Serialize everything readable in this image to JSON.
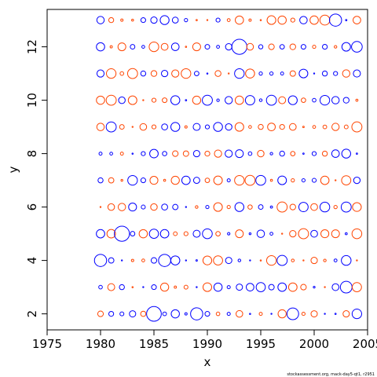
{
  "chart_data": {
    "type": "scatter",
    "title": "",
    "xlabel": "x",
    "ylabel": "y",
    "xlim": [
      1975,
      2005
    ],
    "ylim": [
      1.4,
      13.4
    ],
    "xticks": [
      1975,
      1980,
      1985,
      1990,
      1995,
      2000,
      2005
    ],
    "yticks": [
      2,
      4,
      6,
      8,
      10,
      12
    ],
    "grid": false,
    "legend": "none",
    "credit": "stockassessment.org, mack-day5-qt1, r2951",
    "colors": {
      "positive": "#ff4500",
      "negative": "#0000ff"
    },
    "bubble_note": "point size proportional to |value|; blue circles negative, red positive",
    "series": [
      {
        "name": "",
        "x_from": 1980,
        "x_to": 2004,
        "y_from": 2,
        "y_to": 13,
        "grid_points": "all combinations of integer x in [1980,2004] and integer y in [2,13], years x - y >= 1967 approximately",
        "notable_points": [
          {
            "x": 1980,
            "y": 4,
            "value": -1.3,
            "sign": "negative"
          },
          {
            "x": 1982,
            "y": 5,
            "value": -2.0,
            "sign": "negative"
          },
          {
            "x": 1985,
            "y": 2,
            "value": -1.9,
            "sign": "negative"
          },
          {
            "x": 1993,
            "y": 12,
            "value": -2.0,
            "sign": "negative"
          },
          {
            "x": 2002,
            "y": 13,
            "value": -1.3,
            "sign": "negative"
          },
          {
            "x": 2003,
            "y": 3,
            "value": -1.2,
            "sign": "negative"
          },
          {
            "x": 1986,
            "y": 4,
            "value": -1.3,
            "sign": "negative"
          },
          {
            "x": 1989,
            "y": 2,
            "value": -1.3,
            "sign": "negative"
          },
          {
            "x": 1998,
            "y": 2,
            "value": -1.2,
            "sign": "negative"
          },
          {
            "x": 2004,
            "y": 12,
            "value": -1.0,
            "sign": "negative"
          }
        ]
      }
    ]
  }
}
